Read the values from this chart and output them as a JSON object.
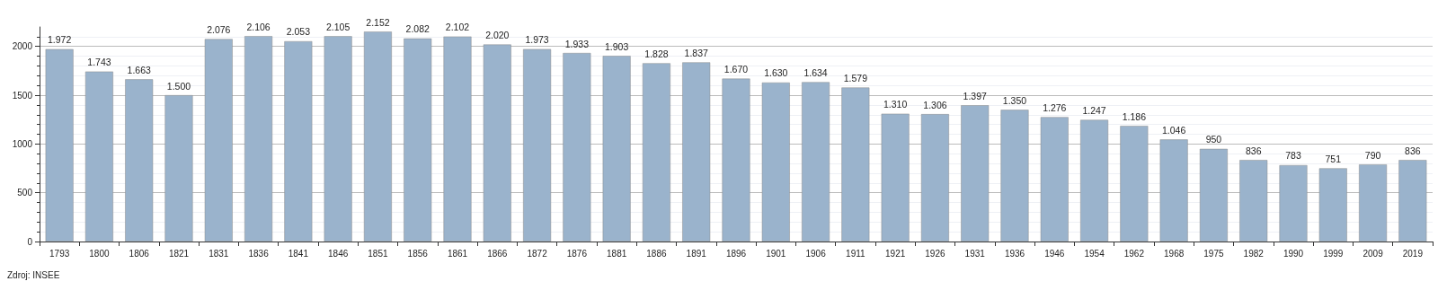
{
  "chart_data": {
    "type": "bar",
    "categories": [
      "1793",
      "1800",
      "1806",
      "1821",
      "1831",
      "1836",
      "1841",
      "1846",
      "1851",
      "1856",
      "1861",
      "1866",
      "1872",
      "1876",
      "1881",
      "1886",
      "1891",
      "1896",
      "1901",
      "1906",
      "1911",
      "1921",
      "1926",
      "1931",
      "1936",
      "1946",
      "1954",
      "1962",
      "1968",
      "1975",
      "1982",
      "1990",
      "1999",
      "2009",
      "2019"
    ],
    "values": [
      1972,
      1743,
      1663,
      1500,
      2076,
      2106,
      2053,
      2105,
      2152,
      2082,
      2102,
      2020,
      1973,
      1933,
      1903,
      1828,
      1837,
      1670,
      1630,
      1634,
      1579,
      1310,
      1306,
      1397,
      1350,
      1276,
      1247,
      1186,
      1046,
      950,
      836,
      783,
      751,
      790,
      836
    ],
    "value_labels": [
      "1.972",
      "1.743",
      "1.663",
      "1.500",
      "2.076",
      "2.106",
      "2.053",
      "2.105",
      "2.152",
      "2.082",
      "2.102",
      "2.020",
      "1.973",
      "1.933",
      "1.903",
      "1.828",
      "1.837",
      "1.670",
      "1.630",
      "1.634",
      "1.579",
      "1.310",
      "1.306",
      "1.397",
      "1.350",
      "1.276",
      "1.247",
      "1.186",
      "1.046",
      "950",
      "836",
      "783",
      "751",
      "790",
      "836"
    ],
    "color": "#9ab3cc",
    "ylim": [
      0,
      2200
    ],
    "yticks": [
      0,
      500,
      1000,
      1500,
      2000
    ],
    "grid": "y",
    "annotations": [
      "Zdroj: INSEE"
    ]
  }
}
